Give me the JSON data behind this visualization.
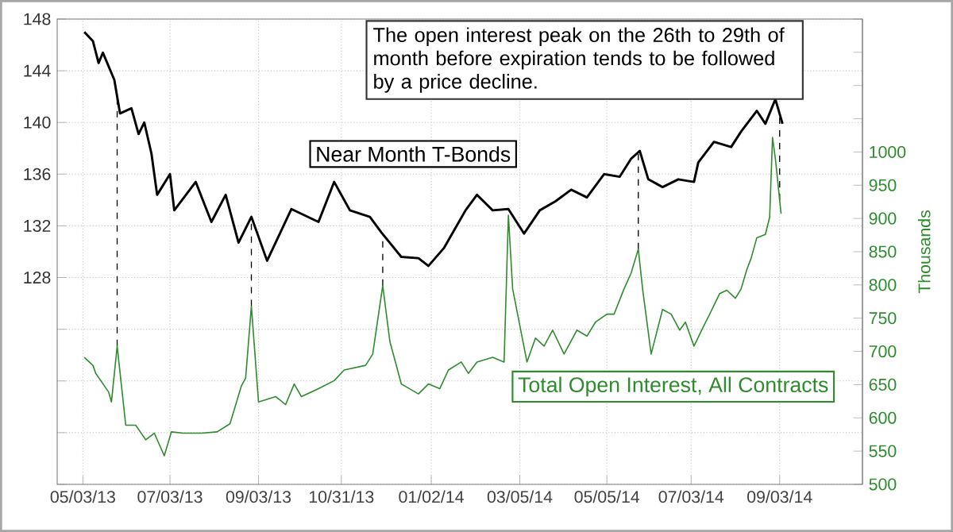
{
  "chart_data": {
    "type": "line",
    "grid": true,
    "line_style": "solid",
    "marker": "none",
    "y2label": "Thousands",
    "annotations": [
      "The open interest peak on the 26th to 29th of month before expiration tends to be followed by a price decline."
    ],
    "xlim": [
      "2013-04-15",
      "2014-10-31"
    ],
    "xticks": [
      {
        "value": "2013-05-03",
        "label": "05/03/13"
      },
      {
        "value": "2013-07-03",
        "label": "07/03/13"
      },
      {
        "value": "2013-09-03",
        "label": "09/03/13"
      },
      {
        "value": "2013-10-31",
        "label": "10/31/13"
      },
      {
        "value": "2014-01-02",
        "label": "01/02/14"
      },
      {
        "value": "2014-03-05",
        "label": "03/05/14"
      },
      {
        "value": "2014-05-05",
        "label": "05/05/14"
      },
      {
        "value": "2014-07-03",
        "label": "07/03/14"
      },
      {
        "value": "2014-09-03",
        "label": "09/03/14"
      }
    ],
    "ylim": [
      112,
      148
    ],
    "yticks": [
      {
        "value": 112,
        "label": null
      },
      {
        "value": 116,
        "label": null
      },
      {
        "value": 120,
        "label": null
      },
      {
        "value": 124,
        "label": null
      },
      128,
      132,
      136,
      140,
      144,
      148
    ],
    "y2lim": [
      500,
      1200
    ],
    "y2ticks": [
      500,
      550,
      600,
      650,
      700,
      750,
      800,
      850,
      900,
      950,
      1000,
      {
        "value": 1050,
        "label": null
      },
      {
        "value": 1100,
        "label": null
      },
      {
        "value": 1150,
        "label": null
      },
      {
        "value": 1200,
        "label": null
      }
    ],
    "ref_lines": [
      {
        "axis": "x",
        "value": "2013-05-27",
        "color": "#000000",
        "line_style": "dashed"
      },
      {
        "axis": "x",
        "value": "2013-08-29",
        "color": "#000000",
        "line_style": "dashed"
      },
      {
        "axis": "x",
        "value": "2013-11-29",
        "color": "#000000",
        "line_style": "dashed"
      },
      {
        "axis": "x",
        "value": "2014-05-27",
        "color": "#000000",
        "line_style": "dashed"
      },
      {
        "axis": "x",
        "value": "2014-09-03",
        "color": "#000000",
        "line_style": "dashed"
      }
    ],
    "series": [
      {
        "name": "Near Month T-Bonds",
        "color": "#000000",
        "x": [
          "2013-05-04",
          "2013-05-10",
          "2013-05-14",
          "2013-05-17",
          "2013-05-25",
          "2013-05-29",
          "2013-06-06",
          "2013-06-11",
          "2013-06-15",
          "2013-06-20",
          "2013-06-24",
          "2013-07-03",
          "2013-07-06",
          "2013-07-21",
          "2013-08-01",
          "2013-08-11",
          "2013-08-20",
          "2013-08-29",
          "2013-09-09",
          "2013-09-26",
          "2013-10-15",
          "2013-10-26",
          "2013-11-06",
          "2013-11-20",
          "2013-11-28",
          "2013-12-12",
          "2013-12-24",
          "2013-12-31",
          "2014-01-11",
          "2014-01-26",
          "2014-02-03",
          "2014-02-14",
          "2014-02-25",
          "2014-03-08",
          "2014-03-19",
          "2014-03-30",
          "2014-04-10",
          "2014-04-21",
          "2014-05-03",
          "2014-05-14",
          "2014-05-22",
          "2014-05-28",
          "2014-06-03",
          "2014-06-13",
          "2014-06-24",
          "2014-07-05",
          "2014-07-08",
          "2014-07-19",
          "2014-07-31",
          "2014-08-07",
          "2014-08-18",
          "2014-08-24",
          "2014-08-31",
          "2014-09-05"
        ],
        "values": [
          147.0,
          146.3,
          144.6,
          145.4,
          143.3,
          140.7,
          141.1,
          139.1,
          140.0,
          137.6,
          134.4,
          136.0,
          133.2,
          135.4,
          132.3,
          134.4,
          130.7,
          132.7,
          129.3,
          133.3,
          132.3,
          135.4,
          133.2,
          132.7,
          131.5,
          129.6,
          129.5,
          128.9,
          130.3,
          133.2,
          134.4,
          133.2,
          133.3,
          131.4,
          133.2,
          133.9,
          134.8,
          134.2,
          136.0,
          135.8,
          137.2,
          137.8,
          135.6,
          135.0,
          135.6,
          135.4,
          136.9,
          138.5,
          138.1,
          139.3,
          140.9,
          139.9,
          141.8,
          139.9
        ]
      },
      {
        "name": "Total Open Interest, All Contracts",
        "color": "#2e8b2e",
        "axis": "y2",
        "x": [
          "2013-05-04",
          "2013-05-10",
          "2013-05-12",
          "2013-05-21",
          "2013-05-23",
          "2013-05-27",
          "2013-06-02",
          "2013-06-09",
          "2013-06-16",
          "2013-06-22",
          "2013-06-29",
          "2013-07-04",
          "2013-07-12",
          "2013-07-25",
          "2013-08-05",
          "2013-08-14",
          "2013-08-22",
          "2013-08-25",
          "2013-08-29",
          "2013-09-03",
          "2013-09-15",
          "2013-09-22",
          "2013-09-28",
          "2013-10-03",
          "2013-10-15",
          "2013-10-26",
          "2013-11-02",
          "2013-11-17",
          "2013-11-22",
          "2013-11-29",
          "2013-12-04",
          "2013-12-12",
          "2013-12-24",
          "2013-12-31",
          "2014-01-08",
          "2014-01-14",
          "2014-01-23",
          "2014-01-28",
          "2014-02-03",
          "2014-02-14",
          "2014-02-22",
          "2014-02-25",
          "2014-02-28",
          "2014-03-10",
          "2014-03-16",
          "2014-03-22",
          "2014-03-28",
          "2014-04-05",
          "2014-04-14",
          "2014-04-21",
          "2014-04-27",
          "2014-05-05",
          "2014-05-10",
          "2014-05-17",
          "2014-05-22",
          "2014-05-27",
          "2014-05-30",
          "2014-06-05",
          "2014-06-13",
          "2014-06-19",
          "2014-06-25",
          "2014-06-29",
          "2014-07-05",
          "2014-07-12",
          "2014-07-16",
          "2014-07-23",
          "2014-07-28",
          "2014-08-03",
          "2014-08-07",
          "2014-08-11",
          "2014-08-14",
          "2014-08-18",
          "2014-08-24",
          "2014-08-27",
          "2014-08-29",
          "2014-08-31",
          "2014-09-04"
        ],
        "values": [
          691,
          679,
          667,
          639,
          624,
          708,
          589,
          589,
          567,
          577,
          543,
          579,
          577,
          577,
          579,
          591,
          648,
          660,
          768,
          624,
          632,
          620,
          651,
          632,
          644,
          656,
          672,
          679,
          696,
          799,
          715,
          651,
          636,
          651,
          644,
          672,
          684,
          667,
          684,
          691,
          684,
          905,
          794,
          684,
          720,
          708,
          732,
          696,
          732,
          723,
          744,
          756,
          756,
          794,
          818,
          854,
          794,
          696,
          763,
          756,
          732,
          744,
          708,
          739,
          756,
          787,
          792,
          780,
          794,
          823,
          840,
          871,
          876,
          902,
          1022,
          990,
          907
        ]
      }
    ]
  }
}
